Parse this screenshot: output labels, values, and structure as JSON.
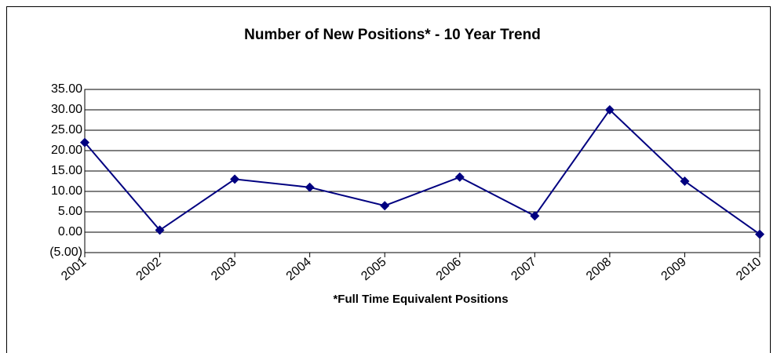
{
  "chart_data": {
    "type": "line",
    "title": "Number of New Positions* - 10 Year Trend",
    "x_label": "*Full Time Equivalent Positions",
    "categories": [
      "2001",
      "2002",
      "2003",
      "2004",
      "2005",
      "2006",
      "2007",
      "2008",
      "2009",
      "2010"
    ],
    "series": [
      {
        "name": "New Positions",
        "color": "#000080",
        "values": [
          22,
          0.5,
          13,
          11,
          6.5,
          13.5,
          4,
          30,
          12.5,
          -0.5
        ]
      }
    ],
    "ylim": [
      -5,
      35
    ],
    "yticks": [
      {
        "value": -5,
        "label": "(5.00)"
      },
      {
        "value": 0,
        "label": "0.00"
      },
      {
        "value": 5,
        "label": "5.00"
      },
      {
        "value": 10,
        "label": "10.00"
      },
      {
        "value": 15,
        "label": "15.00"
      },
      {
        "value": 20,
        "label": "20.00"
      },
      {
        "value": 25,
        "label": "25.00"
      },
      {
        "value": 30,
        "label": "30.00"
      },
      {
        "value": 35,
        "label": "35.00"
      }
    ],
    "grid": true
  }
}
